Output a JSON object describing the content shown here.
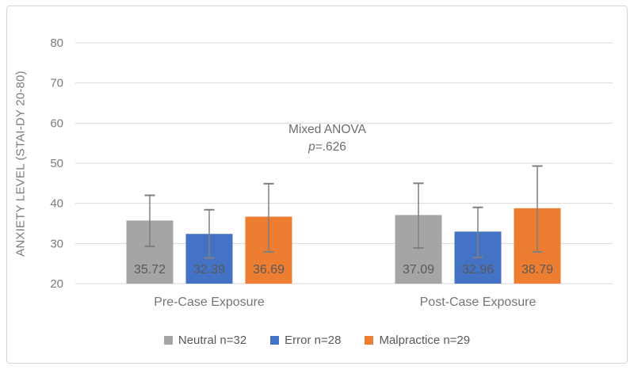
{
  "chart_data": {
    "type": "bar",
    "title": "",
    "xlabel": "",
    "ylabel": "ANXIETY LEVEL (STAI-DY 20-80)",
    "ylim": [
      20,
      80
    ],
    "yticks": [
      20,
      30,
      40,
      50,
      60,
      70,
      80
    ],
    "grid": true,
    "legend_position": "bottom",
    "categories": [
      "Pre-Case Exposure",
      "Post-Case Exposure"
    ],
    "series": [
      {
        "name": "Neutral n=32",
        "color": "#A5A5A5",
        "values": [
          35.72,
          37.09
        ],
        "error_low": [
          29.3,
          28.9
        ],
        "error_high": [
          42.0,
          45.0
        ]
      },
      {
        "name": "Error n=28",
        "color": "#4472C4",
        "values": [
          32.39,
          32.96
        ],
        "error_low": [
          26.4,
          26.5
        ],
        "error_high": [
          38.4,
          39.0
        ]
      },
      {
        "name": "Malpractice n=29",
        "color": "#ED7D31",
        "values": [
          36.69,
          38.79
        ],
        "error_low": [
          27.9,
          27.9
        ],
        "error_high": [
          44.9,
          49.3
        ]
      }
    ],
    "annotation": {
      "line1": "Mixed ANOVA",
      "p_symbol": "p",
      "p_value": "=.626"
    },
    "colors": {
      "gridline": "#D9D9D9",
      "axis_line": "#D9D9D9",
      "error_bar": "#7F7F7F",
      "tick_label": "#7A7A7A",
      "data_label": "#595959"
    }
  }
}
